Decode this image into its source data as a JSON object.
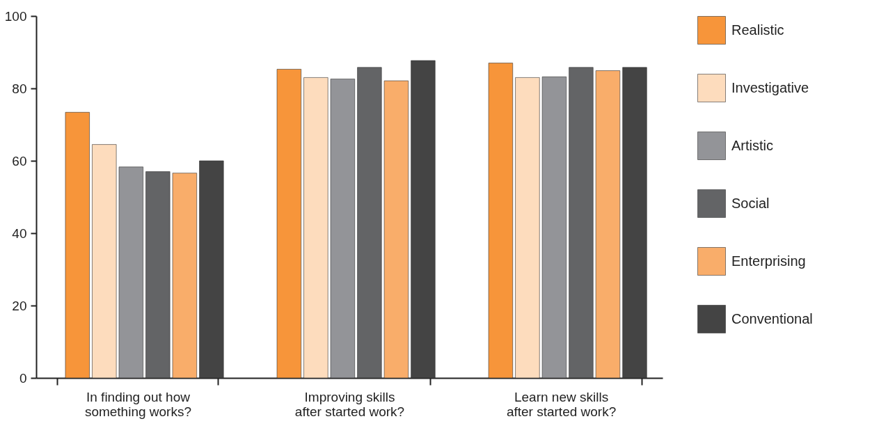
{
  "chart_data": {
    "type": "bar",
    "categories": [
      "In finding out how\nsomething works?",
      "Improving skills\nafter started work?",
      "Learn new skills\nafter started work?"
    ],
    "series": [
      {
        "name": "Realistic",
        "color": "#f7953a",
        "values": [
          73.4,
          85.3,
          87
        ]
      },
      {
        "name": "Investigative",
        "color": "#fddcbd",
        "values": [
          64.5,
          83,
          83
        ]
      },
      {
        "name": "Artistic",
        "color": "#939498",
        "values": [
          58.3,
          82.6,
          83.2
        ]
      },
      {
        "name": "Social",
        "color": "#636466",
        "values": [
          57,
          85.8,
          85.8
        ]
      },
      {
        "name": "Enterprising",
        "color": "#f9ad6a",
        "values": [
          56.6,
          82.1,
          84.9
        ]
      },
      {
        "name": "Conventional",
        "color": "#444444",
        "values": [
          60,
          87.7,
          85.8
        ]
      }
    ],
    "ylim": [
      0,
      100
    ],
    "yticks": [
      0,
      20,
      40,
      60,
      80,
      100
    ],
    "grid": false,
    "legend": "right"
  }
}
